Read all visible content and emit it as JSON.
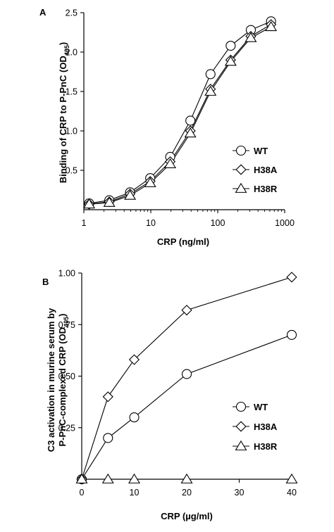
{
  "chart_data": [
    {
      "panel": "A",
      "type": "line",
      "xlabel": "CRP (ng/ml)",
      "ylabel": "Binding of CRP to P-PnC (OD",
      "ylabel_sub": "405",
      "ylabel_close": ")",
      "xscale": "log",
      "xlim": [
        1,
        1000
      ],
      "ylim": [
        0,
        2.5
      ],
      "xticks": [
        1,
        10,
        100,
        1000
      ],
      "xtick_labels": [
        "1",
        "10",
        "100",
        "1000"
      ],
      "yticks": [
        0.5,
        1.0,
        1.5,
        2.0,
        2.5
      ],
      "ytick_labels": [
        "0.5",
        "1.0",
        "1.5",
        "2.0",
        "2.5"
      ],
      "legend_position": "lower-right",
      "x": [
        1.2,
        2.4,
        4.9,
        9.8,
        19.5,
        39,
        78,
        156,
        312,
        625
      ],
      "series": [
        {
          "name": "WT",
          "marker": "circle",
          "values": [
            0.08,
            0.12,
            0.22,
            0.4,
            0.67,
            1.13,
            1.72,
            2.08,
            2.28,
            2.39
          ]
        },
        {
          "name": "H38A",
          "marker": "diamond",
          "values": [
            0.07,
            0.1,
            0.2,
            0.36,
            0.61,
            1.0,
            1.53,
            1.9,
            2.2,
            2.35
          ]
        },
        {
          "name": "H38R",
          "marker": "triangle",
          "values": [
            0.07,
            0.09,
            0.18,
            0.34,
            0.58,
            0.97,
            1.5,
            1.88,
            2.18,
            2.32
          ]
        }
      ]
    },
    {
      "panel": "B",
      "type": "line",
      "xlabel": "CRP (µg/ml)",
      "ylabel_line1": "C3 activation in murine serum by",
      "ylabel_line2": "P-PnC-complexed CRP (OD",
      "ylabel_sub": "405",
      "ylabel_close": ")",
      "xlim": [
        0,
        40
      ],
      "ylim": [
        0,
        1.0
      ],
      "xticks": [
        0,
        10,
        20,
        30,
        40
      ],
      "xtick_labels": [
        "0",
        "10",
        "20",
        "30",
        "40"
      ],
      "yticks": [
        0.25,
        0.5,
        0.75,
        1.0
      ],
      "ytick_labels": [
        "0.25",
        "0.50",
        "0.75",
        "1.00"
      ],
      "legend_position": "lower-right",
      "x": [
        0,
        5,
        10,
        20,
        40
      ],
      "series": [
        {
          "name": "WT",
          "marker": "circle",
          "values": [
            0,
            0.2,
            0.3,
            0.51,
            0.7
          ]
        },
        {
          "name": "H38A",
          "marker": "diamond",
          "values": [
            0,
            0.4,
            0.58,
            0.82,
            0.98
          ]
        },
        {
          "name": "H38R",
          "marker": "triangle",
          "values": [
            0,
            0,
            0,
            0,
            0
          ]
        }
      ]
    }
  ]
}
